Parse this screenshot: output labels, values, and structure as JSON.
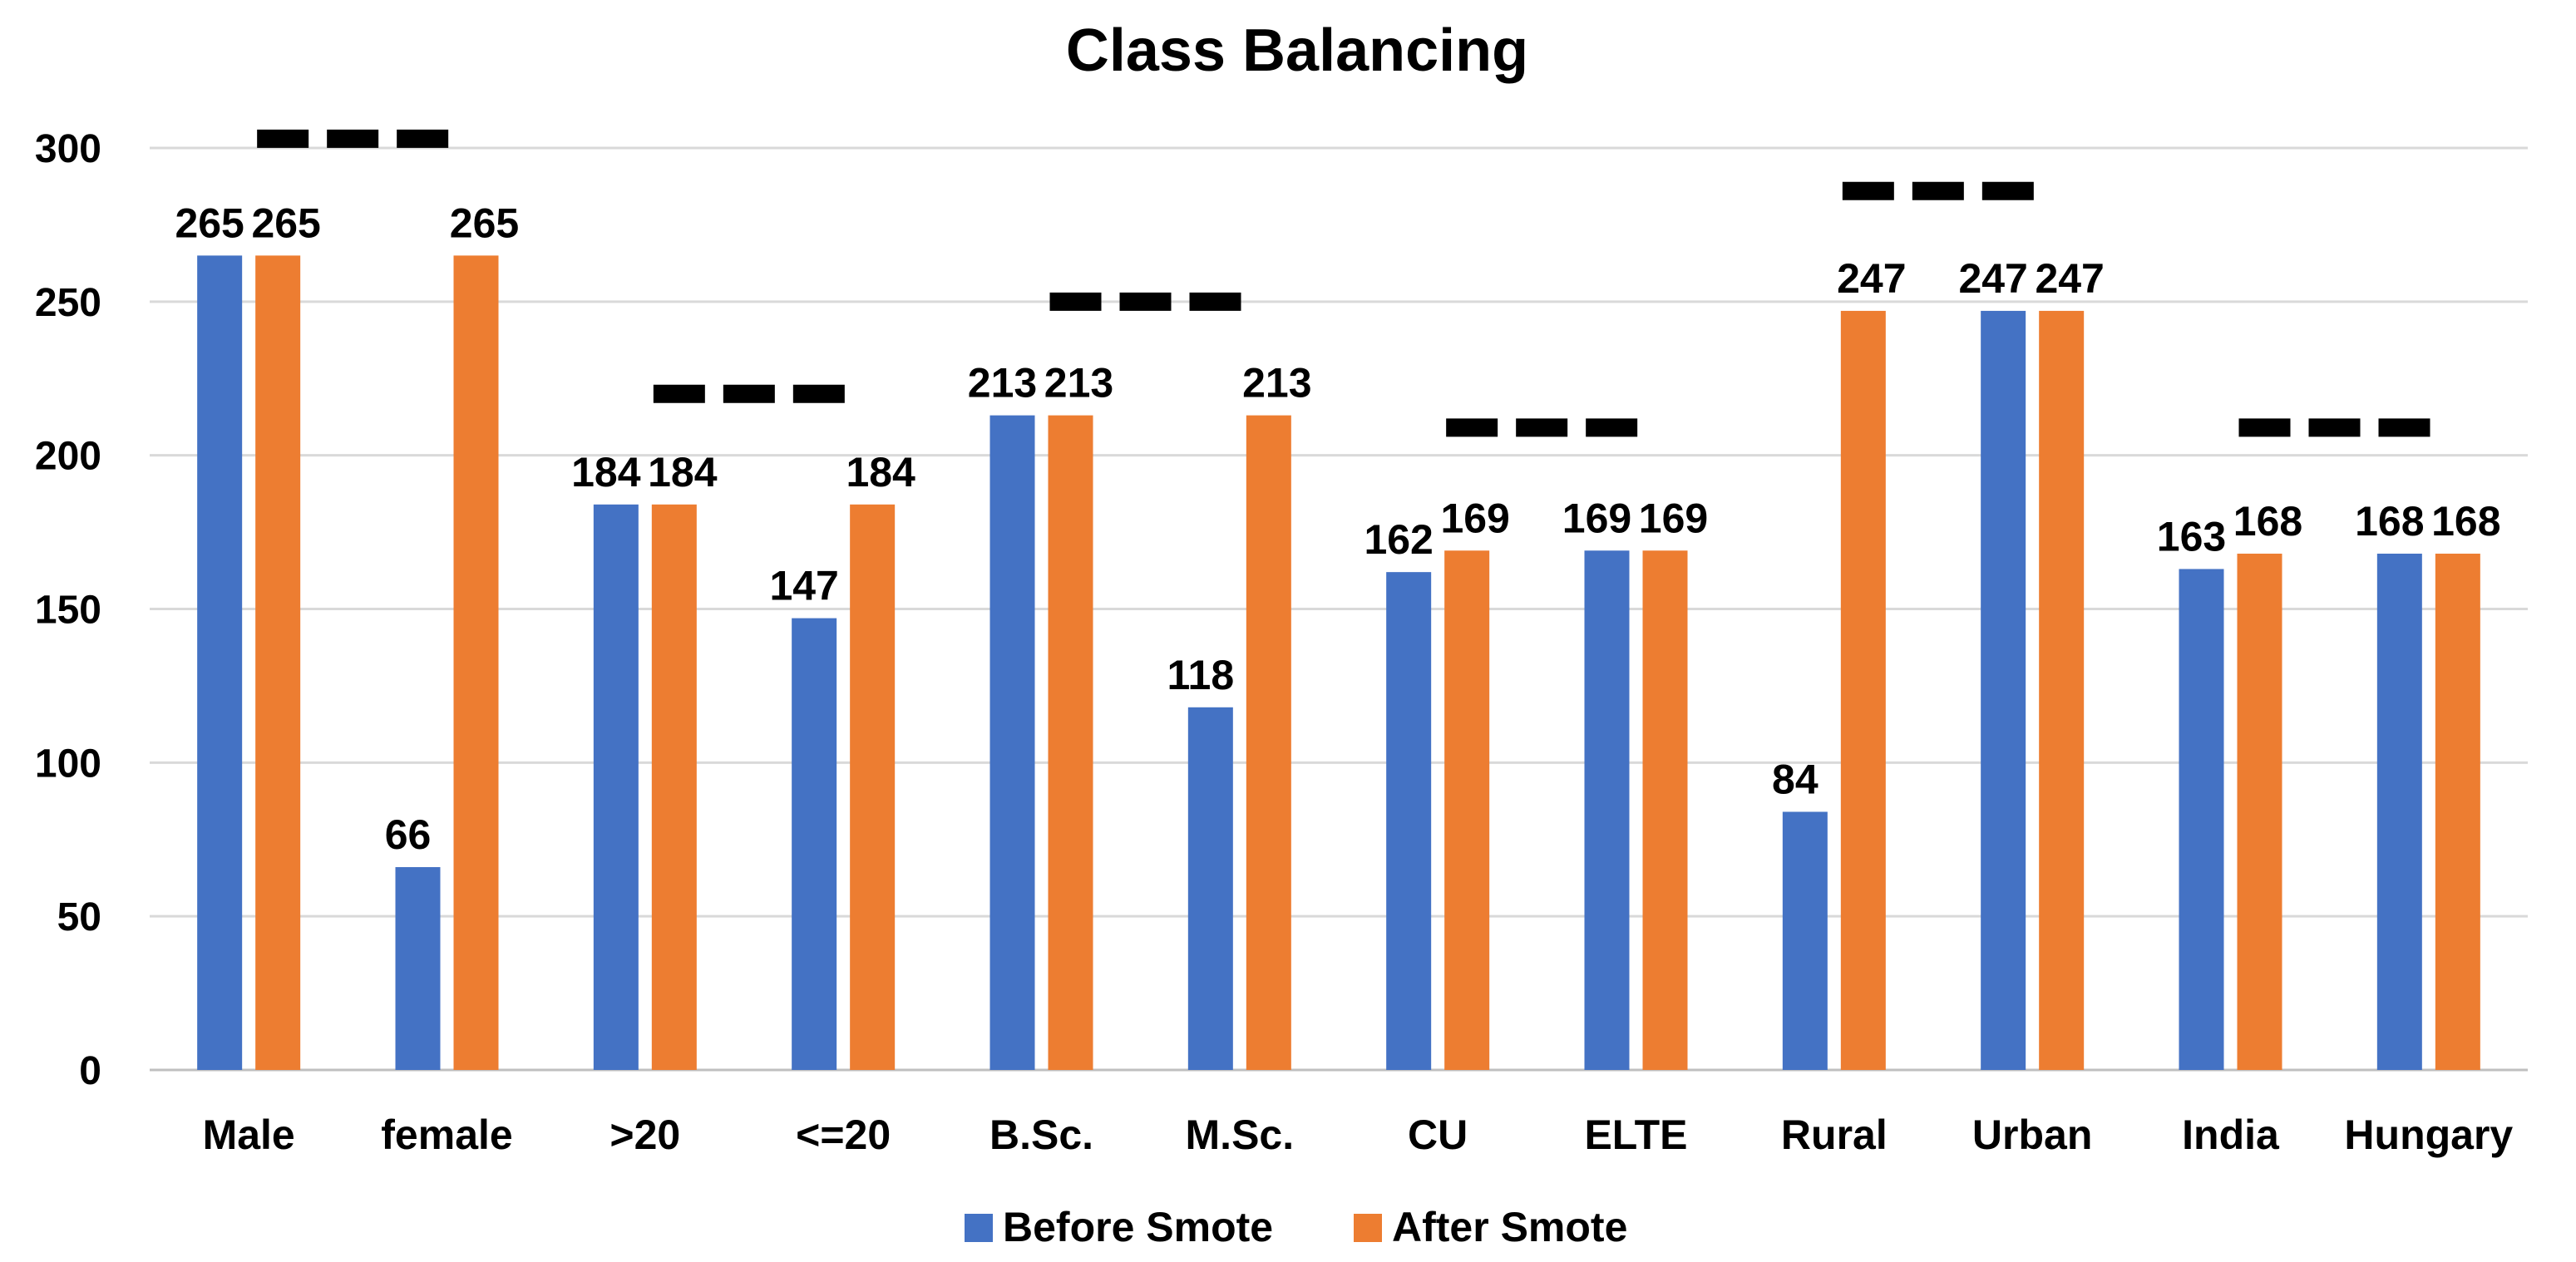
{
  "chart_data": {
    "type": "bar",
    "title": "Class Balancing",
    "xlabel": "",
    "ylabel": "",
    "ylim": [
      0,
      300
    ],
    "yticks": [
      0,
      50,
      100,
      150,
      200,
      250,
      300
    ],
    "grid": true,
    "legend_position": "bottom",
    "categories": [
      "Male",
      "female",
      ">20",
      "<=20",
      "B.Sc.",
      "M.Sc.",
      "CU",
      "ELTE",
      "Rural",
      "Urban",
      "India",
      "Hungary"
    ],
    "series": [
      {
        "name": "Before Smote",
        "color": "#4472C4",
        "values": [
          265,
          66,
          184,
          147,
          213,
          118,
          162,
          169,
          84,
          247,
          163,
          168
        ]
      },
      {
        "name": "After Smote",
        "color": "#ED7D31",
        "values": [
          265,
          265,
          184,
          184,
          213,
          213,
          169,
          169,
          247,
          247,
          168,
          168
        ]
      }
    ],
    "group_markers": [
      {
        "groups": [
          "Male",
          "female"
        ],
        "level": 303
      },
      {
        "groups": [
          ">20",
          "<=20"
        ],
        "level": 220
      },
      {
        "groups": [
          "B.Sc.",
          "M.Sc."
        ],
        "level": 250
      },
      {
        "groups": [
          "CU",
          "ELTE"
        ],
        "level": 209
      },
      {
        "groups": [
          "Rural",
          "Urban"
        ],
        "level": 286
      },
      {
        "groups": [
          "India",
          "Hungary"
        ],
        "level": 209
      }
    ]
  }
}
